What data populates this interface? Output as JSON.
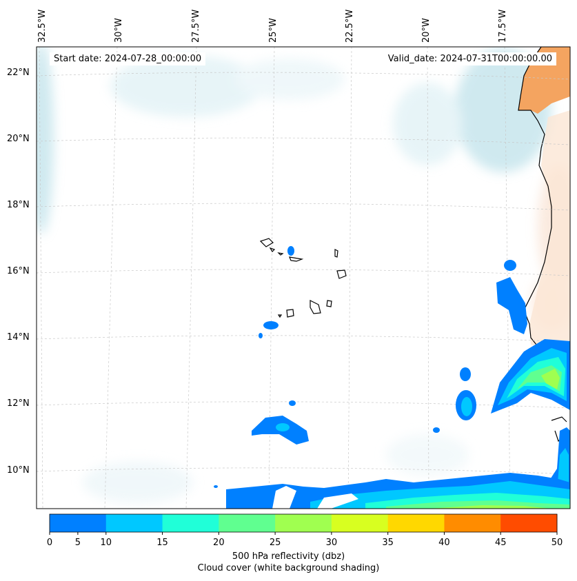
{
  "map": {
    "start_date": "Start date: 2024-07-28_00:00:00",
    "valid_date": "Valid_date: 2024-07-31T00:00:00.00",
    "lon_labels": [
      "32.5°W",
      "30°W",
      "27.5°W",
      "25°W",
      "22.5°W",
      "20°W",
      "17.5°W"
    ],
    "lat_labels": [
      "22°N",
      "20°N",
      "18°N",
      "16°N",
      "14°N",
      "12°N",
      "10°N"
    ],
    "land_color": "#f4a460",
    "cloud_color": "#a9d8e3"
  },
  "colorbar": {
    "colors": [
      "#0080ff",
      "#00c8ff",
      "#20ffd8",
      "#60ff90",
      "#a0ff50",
      "#d8ff20",
      "#ffd800",
      "#ff8c00",
      "#ff4c00"
    ],
    "ticks": [
      "0",
      "5",
      "10",
      "15",
      "20",
      "25",
      "30",
      "35",
      "40",
      "45",
      "50"
    ],
    "label1": "500 hPa reflectivity (dbz)",
    "label2": "Cloud cover (white background shading)"
  }
}
